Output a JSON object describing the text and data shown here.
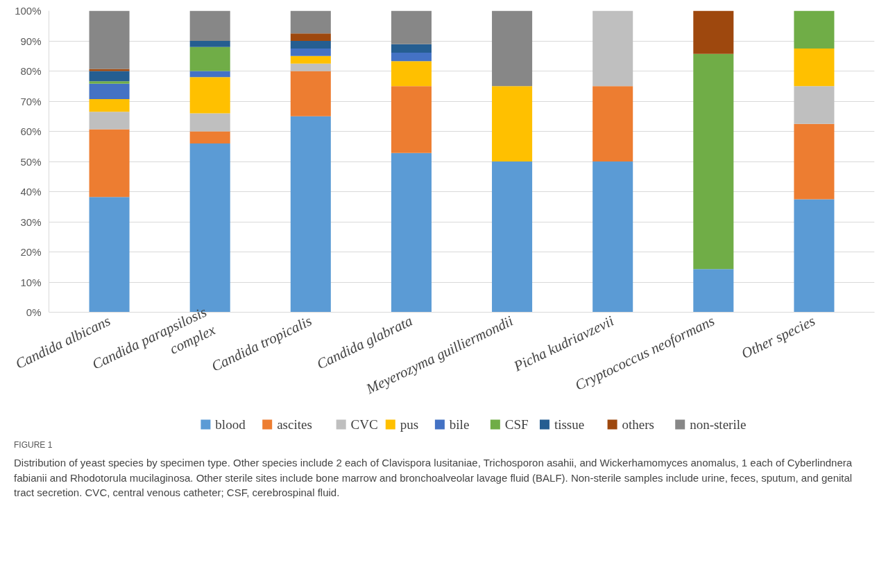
{
  "chart_data": {
    "type": "bar",
    "stacked": true,
    "categories": [
      "Candida albicans",
      "Candida parapsilosis\ncomplex",
      "Candida tropicalis",
      "Candida glabrata",
      "Meyerozyma guilliermondii",
      "Picha kudriavzevii",
      "Cryptococcus neoformans",
      "Other species"
    ],
    "series": [
      {
        "name": "blood",
        "color": "#5b9bd5",
        "values": [
          38.2,
          56,
          65,
          52.8,
          50,
          50,
          14.3,
          37.5
        ]
      },
      {
        "name": "ascites",
        "color": "#ed7d31",
        "values": [
          22.5,
          4,
          15,
          22.2,
          0,
          25,
          0,
          25
        ]
      },
      {
        "name": "CVC",
        "color": "#bfbfbf",
        "values": [
          5.8,
          6,
          2.5,
          0,
          0,
          25,
          0,
          12.5
        ]
      },
      {
        "name": "pus",
        "color": "#ffc000",
        "values": [
          4.2,
          12,
          2.5,
          8.3,
          25,
          0,
          0,
          12.5
        ]
      },
      {
        "name": "bile",
        "color": "#4472c4",
        "values": [
          5.1,
          2,
          2.5,
          2.8,
          0,
          0,
          0,
          0
        ]
      },
      {
        "name": "CSF",
        "color": "#70ad47",
        "values": [
          0.8,
          8,
          0,
          0,
          0,
          0,
          71.4,
          12.5
        ]
      },
      {
        "name": "tissue",
        "color": "#255e91",
        "values": [
          3.4,
          2,
          2.5,
          2.8,
          0,
          0,
          0,
          0
        ]
      },
      {
        "name": "others",
        "color": "#9e480e",
        "values": [
          0.7,
          0,
          2.5,
          0,
          0,
          0,
          14.3,
          0
        ]
      },
      {
        "name": "non-sterile",
        "color": "#878787",
        "values": [
          19.3,
          10,
          7.5,
          11.1,
          25,
          0,
          0,
          0
        ]
      }
    ],
    "ylim": [
      0,
      100
    ],
    "yticks": [
      {
        "value": 0,
        "label": "0%"
      },
      {
        "value": 10,
        "label": "10%"
      },
      {
        "value": 20,
        "label": "20%"
      },
      {
        "value": 30,
        "label": "30%"
      },
      {
        "value": 40,
        "label": "40%"
      },
      {
        "value": 50,
        "label": "50%"
      },
      {
        "value": 60,
        "label": "60%"
      },
      {
        "value": 70,
        "label": "70%"
      },
      {
        "value": 80,
        "label": "80%"
      },
      {
        "value": 90,
        "label": "90%"
      },
      {
        "value": 100,
        "label": "100%"
      }
    ],
    "grid": "y",
    "legend": "bottom",
    "annotations": [
      "FIGURE 1",
      "Distribution of yeast species by specimen type. Other species include 2 each of Clavispora lusitaniae, Trichosporon asahii, and Wickerhamomyces anomalus, 1 each of Cyberlindnera fabianii and Rhodotorula mucilaginosa. Other sterile sites include bone marrow and bronchoalveolar lavage fluid (BALF). Non-sterile samples include urine, feces, sputum, and genital tract secretion. CVC, central venous catheter; CSF, cerebrospinal fluid."
    ]
  }
}
